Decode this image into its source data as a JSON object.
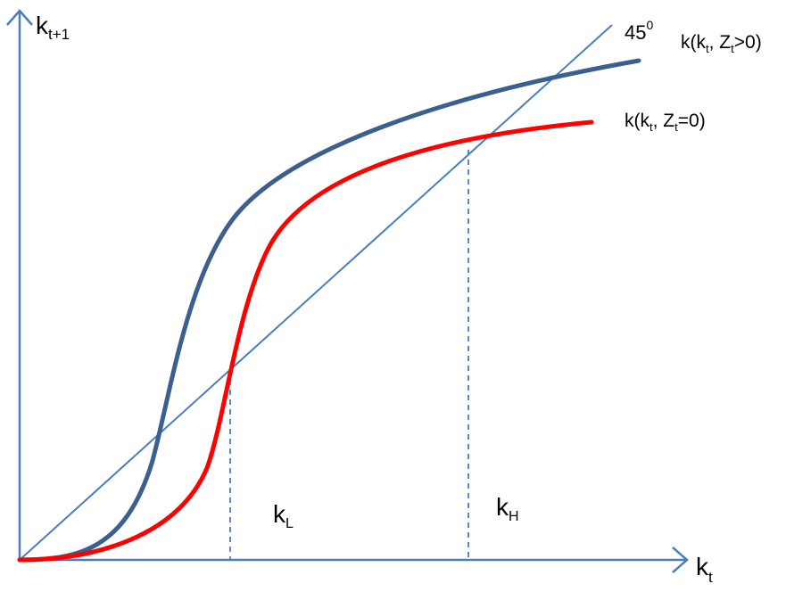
{
  "colors": {
    "axis": "#4a7ebb",
    "diagonal": "#4a7ebb",
    "curve_high": "#3b5f8f",
    "curve_low": "#ff0000",
    "dashed": "#4a7ebb"
  },
  "axes": {
    "y_label": {
      "base": "k",
      "sub": "t+1"
    },
    "x_label": {
      "base": "k",
      "sub": "t"
    }
  },
  "diagonal_label": {
    "base": "45",
    "sup": "0"
  },
  "curves": {
    "high": {
      "p1": "k(k",
      "sub1": "t",
      "p2": ", Z",
      "sub2": "t",
      "p3": ">0)"
    },
    "low": {
      "p1": "k(k",
      "sub1": "t",
      "p2": ", Z",
      "sub2": "t",
      "p3": "=0)"
    }
  },
  "steady_states": {
    "low": {
      "base": "k",
      "sub": "L"
    },
    "high": {
      "base": "k",
      "sub": "H"
    }
  }
}
